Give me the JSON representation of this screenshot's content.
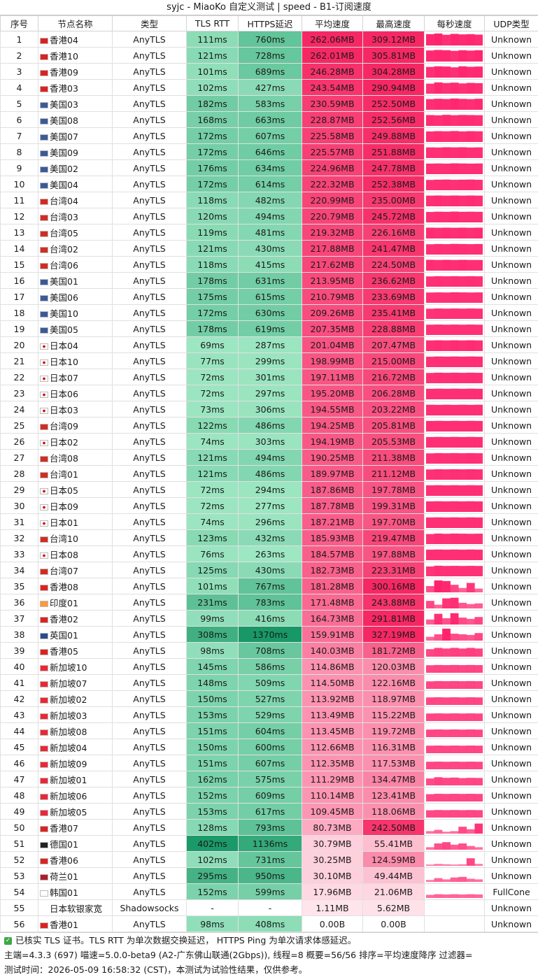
{
  "title": "syjc - MiaoKo 自定义测试 | speed - B1-订阅速度",
  "headers": [
    "序号",
    "节点名称",
    "类型",
    "TLS RTT",
    "HTTPS延迟",
    "平均速度",
    "最高速度",
    "每秒速度",
    "UDP类型"
  ],
  "flags": {
    "hk": "#e02020",
    "us": "#3c5a9a",
    "tw": "#d52b1e",
    "jp": "#ffffff",
    "in": "#ff9933",
    "gb": "#2b4a8a",
    "sg": "#ee2536",
    "de": "#222222",
    "nl": "#ae1c28",
    "kr": "#ffffff",
    "none": "transparent"
  },
  "rows": [
    {
      "n": "1",
      "flag": "hk",
      "name": "香港04",
      "type": "AnyTLS",
      "tls": "111ms",
      "https": "760ms",
      "avg": "262.06MB",
      "max": "309.12MB",
      "udp": "Unknown",
      "speeds": [
        0.9,
        0.95,
        0.85,
        0.92,
        0.88,
        0.9,
        0.86
      ]
    },
    {
      "n": "2",
      "flag": "hk",
      "name": "香港10",
      "type": "AnyTLS",
      "tls": "121ms",
      "https": "728ms",
      "avg": "262.01MB",
      "max": "305.81MB",
      "udp": "Unknown",
      "speeds": [
        0.88,
        0.92,
        0.9,
        0.85,
        0.9,
        0.87,
        0.9
      ]
    },
    {
      "n": "3",
      "flag": "hk",
      "name": "香港09",
      "type": "AnyTLS",
      "tls": "101ms",
      "https": "689ms",
      "avg": "246.28MB",
      "max": "304.28MB",
      "udp": "Unknown",
      "speeds": [
        0.85,
        0.9,
        0.88,
        0.82,
        0.9,
        0.86,
        0.88
      ]
    },
    {
      "n": "4",
      "flag": "hk",
      "name": "香港03",
      "type": "AnyTLS",
      "tls": "102ms",
      "https": "427ms",
      "avg": "243.54MB",
      "max": "290.94MB",
      "udp": "Unknown",
      "speeds": [
        0.8,
        0.9,
        0.85,
        0.88,
        0.82,
        0.86,
        0.84
      ]
    },
    {
      "n": "5",
      "flag": "us",
      "name": "美国03",
      "type": "AnyTLS",
      "tls": "182ms",
      "https": "583ms",
      "avg": "230.59MB",
      "max": "252.50MB",
      "udp": "Unknown",
      "speeds": [
        0.85,
        0.88,
        0.86,
        0.9,
        0.87,
        0.85,
        0.88
      ]
    },
    {
      "n": "6",
      "flag": "us",
      "name": "美国08",
      "type": "AnyTLS",
      "tls": "168ms",
      "https": "663ms",
      "avg": "228.87MB",
      "max": "252.56MB",
      "udp": "Unknown",
      "speeds": [
        0.86,
        0.84,
        0.88,
        0.85,
        0.87,
        0.86,
        0.85
      ]
    },
    {
      "n": "7",
      "flag": "us",
      "name": "美国07",
      "type": "AnyTLS",
      "tls": "172ms",
      "https": "607ms",
      "avg": "225.58MB",
      "max": "249.88MB",
      "udp": "Unknown",
      "speeds": [
        0.84,
        0.86,
        0.85,
        0.87,
        0.84,
        0.86,
        0.85
      ]
    },
    {
      "n": "8",
      "flag": "us",
      "name": "美国09",
      "type": "AnyTLS",
      "tls": "172ms",
      "https": "646ms",
      "avg": "225.57MB",
      "max": "251.88MB",
      "udp": "Unknown",
      "speeds": [
        0.85,
        0.84,
        0.86,
        0.85,
        0.86,
        0.84,
        0.85
      ]
    },
    {
      "n": "9",
      "flag": "us",
      "name": "美国02",
      "type": "AnyTLS",
      "tls": "176ms",
      "https": "634ms",
      "avg": "224.96MB",
      "max": "247.78MB",
      "udp": "Unknown",
      "speeds": [
        0.84,
        0.85,
        0.84,
        0.86,
        0.85,
        0.84,
        0.85
      ]
    },
    {
      "n": "10",
      "flag": "us",
      "name": "美国04",
      "type": "AnyTLS",
      "tls": "172ms",
      "https": "614ms",
      "avg": "222.32MB",
      "max": "252.38MB",
      "udp": "Unknown",
      "speeds": [
        0.82,
        0.84,
        0.85,
        0.83,
        0.84,
        0.85,
        0.83
      ]
    },
    {
      "n": "11",
      "flag": "tw",
      "name": "台湾04",
      "type": "AnyTLS",
      "tls": "118ms",
      "https": "482ms",
      "avg": "220.99MB",
      "max": "235.00MB",
      "udp": "Unknown",
      "speeds": [
        0.85,
        0.86,
        0.85,
        0.86,
        0.85,
        0.86,
        0.85
      ]
    },
    {
      "n": "12",
      "flag": "tw",
      "name": "台湾03",
      "type": "AnyTLS",
      "tls": "120ms",
      "https": "494ms",
      "avg": "220.79MB",
      "max": "245.72MB",
      "udp": "Unknown",
      "speeds": [
        0.83,
        0.85,
        0.84,
        0.86,
        0.84,
        0.85,
        0.84
      ]
    },
    {
      "n": "13",
      "flag": "tw",
      "name": "台湾05",
      "type": "AnyTLS",
      "tls": "119ms",
      "https": "481ms",
      "avg": "219.32MB",
      "max": "226.16MB",
      "udp": "Unknown",
      "speeds": [
        0.86,
        0.85,
        0.86,
        0.85,
        0.86,
        0.85,
        0.86
      ]
    },
    {
      "n": "14",
      "flag": "tw",
      "name": "台湾02",
      "type": "AnyTLS",
      "tls": "121ms",
      "https": "430ms",
      "avg": "217.88MB",
      "max": "241.47MB",
      "udp": "Unknown",
      "speeds": [
        0.82,
        0.84,
        0.83,
        0.85,
        0.84,
        0.83,
        0.84
      ]
    },
    {
      "n": "15",
      "flag": "tw",
      "name": "台湾06",
      "type": "AnyTLS",
      "tls": "118ms",
      "https": "415ms",
      "avg": "217.62MB",
      "max": "224.50MB",
      "udp": "Unknown",
      "speeds": [
        0.86,
        0.85,
        0.86,
        0.85,
        0.86,
        0.85,
        0.85
      ]
    },
    {
      "n": "16",
      "flag": "us",
      "name": "美国01",
      "type": "AnyTLS",
      "tls": "178ms",
      "https": "631ms",
      "avg": "213.95MB",
      "max": "236.62MB",
      "udp": "Unknown",
      "speeds": [
        0.82,
        0.84,
        0.83,
        0.84,
        0.83,
        0.84,
        0.83
      ]
    },
    {
      "n": "17",
      "flag": "us",
      "name": "美国06",
      "type": "AnyTLS",
      "tls": "175ms",
      "https": "615ms",
      "avg": "210.79MB",
      "max": "233.69MB",
      "udp": "Unknown",
      "speeds": [
        0.82,
        0.83,
        0.82,
        0.84,
        0.83,
        0.82,
        0.83
      ]
    },
    {
      "n": "18",
      "flag": "us",
      "name": "美国10",
      "type": "AnyTLS",
      "tls": "172ms",
      "https": "630ms",
      "avg": "209.26MB",
      "max": "235.41MB",
      "udp": "Unknown",
      "speeds": [
        0.81,
        0.83,
        0.82,
        0.83,
        0.82,
        0.83,
        0.82
      ]
    },
    {
      "n": "19",
      "flag": "us",
      "name": "美国05",
      "type": "AnyTLS",
      "tls": "178ms",
      "https": "619ms",
      "avg": "207.35MB",
      "max": "228.88MB",
      "udp": "Unknown",
      "speeds": [
        0.82,
        0.83,
        0.82,
        0.83,
        0.82,
        0.83,
        0.82
      ]
    },
    {
      "n": "20",
      "flag": "jp",
      "name": "日本04",
      "type": "AnyTLS",
      "tls": "69ms",
      "https": "287ms",
      "avg": "201.04MB",
      "max": "207.47MB",
      "udp": "Unknown",
      "speeds": [
        0.85,
        0.86,
        0.85,
        0.86,
        0.85,
        0.86,
        0.85
      ]
    },
    {
      "n": "21",
      "flag": "jp",
      "name": "日本10",
      "type": "AnyTLS",
      "tls": "77ms",
      "https": "299ms",
      "avg": "198.99MB",
      "max": "215.00MB",
      "udp": "Unknown",
      "speeds": [
        0.83,
        0.85,
        0.84,
        0.85,
        0.84,
        0.85,
        0.84
      ]
    },
    {
      "n": "22",
      "flag": "jp",
      "name": "日本07",
      "type": "AnyTLS",
      "tls": "72ms",
      "https": "301ms",
      "avg": "197.11MB",
      "max": "216.72MB",
      "udp": "Unknown",
      "speeds": [
        0.82,
        0.84,
        0.83,
        0.84,
        0.83,
        0.84,
        0.83
      ]
    },
    {
      "n": "23",
      "flag": "jp",
      "name": "日本06",
      "type": "AnyTLS",
      "tls": "72ms",
      "https": "297ms",
      "avg": "195.20MB",
      "max": "206.28MB",
      "udp": "Unknown",
      "speeds": [
        0.84,
        0.85,
        0.84,
        0.85,
        0.84,
        0.85,
        0.84
      ]
    },
    {
      "n": "24",
      "flag": "jp",
      "name": "日本03",
      "type": "AnyTLS",
      "tls": "73ms",
      "https": "306ms",
      "avg": "194.55MB",
      "max": "203.22MB",
      "udp": "Unknown",
      "speeds": [
        0.85,
        0.84,
        0.85,
        0.84,
        0.85,
        0.84,
        0.85
      ]
    },
    {
      "n": "25",
      "flag": "tw",
      "name": "台湾09",
      "type": "AnyTLS",
      "tls": "122ms",
      "https": "486ms",
      "avg": "194.25MB",
      "max": "205.81MB",
      "udp": "Unknown",
      "speeds": [
        0.84,
        0.85,
        0.84,
        0.85,
        0.84,
        0.85,
        0.84
      ]
    },
    {
      "n": "26",
      "flag": "jp",
      "name": "日本02",
      "type": "AnyTLS",
      "tls": "74ms",
      "https": "303ms",
      "avg": "194.19MB",
      "max": "205.53MB",
      "udp": "Unknown",
      "speeds": [
        0.84,
        0.85,
        0.84,
        0.85,
        0.84,
        0.85,
        0.84
      ]
    },
    {
      "n": "27",
      "flag": "tw",
      "name": "台湾08",
      "type": "AnyTLS",
      "tls": "121ms",
      "https": "494ms",
      "avg": "190.25MB",
      "max": "211.38MB",
      "udp": "Unknown",
      "speeds": [
        0.82,
        0.84,
        0.83,
        0.84,
        0.83,
        0.84,
        0.83
      ]
    },
    {
      "n": "28",
      "flag": "tw",
      "name": "台湾01",
      "type": "AnyTLS",
      "tls": "121ms",
      "https": "486ms",
      "avg": "189.97MB",
      "max": "211.12MB",
      "udp": "Unknown",
      "speeds": [
        0.82,
        0.84,
        0.83,
        0.84,
        0.83,
        0.84,
        0.83
      ]
    },
    {
      "n": "29",
      "flag": "jp",
      "name": "日本05",
      "type": "AnyTLS",
      "tls": "72ms",
      "https": "294ms",
      "avg": "187.86MB",
      "max": "197.78MB",
      "udp": "Unknown",
      "speeds": [
        0.84,
        0.85,
        0.84,
        0.85,
        0.84,
        0.85,
        0.84
      ]
    },
    {
      "n": "30",
      "flag": "jp",
      "name": "日本09",
      "type": "AnyTLS",
      "tls": "72ms",
      "https": "277ms",
      "avg": "187.78MB",
      "max": "199.31MB",
      "udp": "Unknown",
      "speeds": [
        0.84,
        0.85,
        0.84,
        0.85,
        0.84,
        0.85,
        0.84
      ]
    },
    {
      "n": "31",
      "flag": "jp",
      "name": "日本01",
      "type": "AnyTLS",
      "tls": "74ms",
      "https": "296ms",
      "avg": "187.21MB",
      "max": "197.70MB",
      "udp": "Unknown",
      "speeds": [
        0.84,
        0.85,
        0.84,
        0.85,
        0.84,
        0.85,
        0.84
      ]
    },
    {
      "n": "32",
      "flag": "tw",
      "name": "台湾10",
      "type": "AnyTLS",
      "tls": "123ms",
      "https": "432ms",
      "avg": "185.93MB",
      "max": "219.47MB",
      "udp": "Unknown",
      "speeds": [
        0.8,
        0.84,
        0.82,
        0.84,
        0.83,
        0.82,
        0.83
      ]
    },
    {
      "n": "33",
      "flag": "jp",
      "name": "日本08",
      "type": "AnyTLS",
      "tls": "76ms",
      "https": "263ms",
      "avg": "184.57MB",
      "max": "197.88MB",
      "udp": "Unknown",
      "speeds": [
        0.84,
        0.85,
        0.84,
        0.85,
        0.84,
        0.85,
        0.84
      ]
    },
    {
      "n": "34",
      "flag": "tw",
      "name": "台湾07",
      "type": "AnyTLS",
      "tls": "125ms",
      "https": "430ms",
      "avg": "182.73MB",
      "max": "223.31MB",
      "udp": "Unknown",
      "speeds": [
        0.78,
        0.84,
        0.82,
        0.83,
        0.82,
        0.83,
        0.82
      ]
    },
    {
      "n": "35",
      "flag": "hk",
      "name": "香港08",
      "type": "AnyTLS",
      "tls": "101ms",
      "https": "767ms",
      "avg": "181.28MB",
      "max": "300.16MB",
      "udp": "Unknown",
      "speeds": [
        0.5,
        0.95,
        0.9,
        0.6,
        0.35,
        0.75,
        0.3
      ]
    },
    {
      "n": "36",
      "flag": "in",
      "name": "印度01",
      "type": "AnyTLS",
      "tls": "231ms",
      "https": "783ms",
      "avg": "171.48MB",
      "max": "243.88MB",
      "udp": "Unknown",
      "speeds": [
        0.6,
        0.3,
        0.8,
        0.85,
        0.45,
        0.35,
        0.4
      ]
    },
    {
      "n": "37",
      "flag": "hk",
      "name": "香港02",
      "type": "AnyTLS",
      "tls": "99ms",
      "https": "416ms",
      "avg": "164.73MB",
      "max": "291.81MB",
      "udp": "Unknown",
      "speeds": [
        0.4,
        0.85,
        0.5,
        0.9,
        0.55,
        0.45,
        0.6
      ]
    },
    {
      "n": "38",
      "flag": "gb",
      "name": "英国01",
      "type": "AnyTLS",
      "tls": "308ms",
      "https": "1370ms",
      "avg": "159.91MB",
      "max": "327.19MB",
      "udp": "Unknown",
      "speeds": [
        0.3,
        0.5,
        0.95,
        0.55,
        0.5,
        0.45,
        0.6
      ]
    },
    {
      "n": "39",
      "flag": "hk",
      "name": "香港05",
      "type": "AnyTLS",
      "tls": "98ms",
      "https": "708ms",
      "avg": "140.03MB",
      "max": "181.72MB",
      "udp": "Unknown",
      "speeds": [
        0.6,
        0.7,
        0.65,
        0.7,
        0.65,
        0.7,
        0.65
      ]
    },
    {
      "n": "40",
      "flag": "sg",
      "name": "新加坡10",
      "type": "AnyTLS",
      "tls": "145ms",
      "https": "586ms",
      "avg": "114.86MB",
      "max": "120.03MB",
      "udp": "Unknown",
      "speeds": [
        0.6,
        0.62,
        0.61,
        0.62,
        0.61,
        0.62,
        0.61
      ]
    },
    {
      "n": "41",
      "flag": "sg",
      "name": "新加坡07",
      "type": "AnyTLS",
      "tls": "148ms",
      "https": "509ms",
      "avg": "114.50MB",
      "max": "122.16MB",
      "udp": "Unknown",
      "speeds": [
        0.6,
        0.62,
        0.61,
        0.62,
        0.61,
        0.62,
        0.61
      ]
    },
    {
      "n": "42",
      "flag": "sg",
      "name": "新加坡02",
      "type": "AnyTLS",
      "tls": "150ms",
      "https": "527ms",
      "avg": "113.92MB",
      "max": "118.97MB",
      "udp": "Unknown",
      "speeds": [
        0.6,
        0.61,
        0.6,
        0.61,
        0.6,
        0.61,
        0.6
      ]
    },
    {
      "n": "43",
      "flag": "sg",
      "name": "新加坡03",
      "type": "AnyTLS",
      "tls": "153ms",
      "https": "529ms",
      "avg": "113.49MB",
      "max": "115.22MB",
      "udp": "Unknown",
      "speeds": [
        0.6,
        0.61,
        0.6,
        0.61,
        0.6,
        0.61,
        0.6
      ]
    },
    {
      "n": "44",
      "flag": "sg",
      "name": "新加坡08",
      "type": "AnyTLS",
      "tls": "151ms",
      "https": "604ms",
      "avg": "113.45MB",
      "max": "119.72MB",
      "udp": "Unknown",
      "speeds": [
        0.6,
        0.61,
        0.6,
        0.61,
        0.6,
        0.61,
        0.6
      ]
    },
    {
      "n": "45",
      "flag": "sg",
      "name": "新加坡04",
      "type": "AnyTLS",
      "tls": "150ms",
      "https": "600ms",
      "avg": "112.66MB",
      "max": "116.31MB",
      "udp": "Unknown",
      "speeds": [
        0.6,
        0.61,
        0.6,
        0.61,
        0.6,
        0.61,
        0.6
      ]
    },
    {
      "n": "46",
      "flag": "sg",
      "name": "新加坡09",
      "type": "AnyTLS",
      "tls": "151ms",
      "https": "607ms",
      "avg": "112.35MB",
      "max": "117.53MB",
      "udp": "Unknown",
      "speeds": [
        0.6,
        0.61,
        0.6,
        0.61,
        0.6,
        0.61,
        0.6
      ]
    },
    {
      "n": "47",
      "flag": "sg",
      "name": "新加坡01",
      "type": "AnyTLS",
      "tls": "162ms",
      "https": "575ms",
      "avg": "111.29MB",
      "max": "134.47MB",
      "udp": "Unknown",
      "speeds": [
        0.55,
        0.65,
        0.6,
        0.62,
        0.58,
        0.6,
        0.59
      ]
    },
    {
      "n": "48",
      "flag": "sg",
      "name": "新加坡06",
      "type": "AnyTLS",
      "tls": "152ms",
      "https": "609ms",
      "avg": "110.14MB",
      "max": "123.41MB",
      "udp": "Unknown",
      "speeds": [
        0.58,
        0.61,
        0.6,
        0.61,
        0.6,
        0.61,
        0.6
      ]
    },
    {
      "n": "49",
      "flag": "sg",
      "name": "新加坡05",
      "type": "AnyTLS",
      "tls": "153ms",
      "https": "617ms",
      "avg": "109.45MB",
      "max": "118.06MB",
      "udp": "Unknown",
      "speeds": [
        0.58,
        0.6,
        0.59,
        0.6,
        0.59,
        0.6,
        0.59
      ]
    },
    {
      "n": "50",
      "flag": "hk",
      "name": "香港07",
      "type": "AnyTLS",
      "tls": "128ms",
      "https": "793ms",
      "avg": "80.73MB",
      "max": "242.50MB",
      "udp": "Unknown",
      "speeds": [
        0.2,
        0.3,
        0.15,
        0.2,
        0.55,
        0.35,
        0.8
      ]
    },
    {
      "n": "51",
      "flag": "de",
      "name": "德国01",
      "type": "AnyTLS",
      "tls": "402ms",
      "https": "1136ms",
      "avg": "30.79MB",
      "max": "55.41MB",
      "udp": "Unknown",
      "speeds": [
        0.2,
        0.5,
        0.6,
        0.4,
        0.5,
        0.3,
        0.2
      ]
    },
    {
      "n": "52",
      "flag": "hk",
      "name": "香港06",
      "type": "AnyTLS",
      "tls": "102ms",
      "https": "731ms",
      "avg": "30.25MB",
      "max": "124.59MB",
      "udp": "Unknown",
      "speeds": [
        0.1,
        0.15,
        0.12,
        0.1,
        0.12,
        0.6,
        0.15
      ]
    },
    {
      "n": "53",
      "flag": "nl",
      "name": "荷兰01",
      "type": "AnyTLS",
      "tls": "295ms",
      "https": "950ms",
      "avg": "30.10MB",
      "max": "49.44MB",
      "udp": "Unknown",
      "speeds": [
        0.15,
        0.3,
        0.2,
        0.35,
        0.4,
        0.25,
        0.2
      ]
    },
    {
      "n": "54",
      "flag": "kr",
      "name": "韩国01",
      "type": "AnyTLS",
      "tls": "152ms",
      "https": "599ms",
      "avg": "17.96MB",
      "max": "21.06MB",
      "udp": "FullCone",
      "speeds": [
        0.25,
        0.3,
        0.28,
        0.3,
        0.28,
        0.3,
        0.28
      ]
    },
    {
      "n": "55",
      "flag": "none",
      "name": "日本软银家宽",
      "type": "Shadowsocks",
      "tls": "-",
      "https": "-",
      "avg": "1.11MB",
      "max": "5.62MB",
      "udp": "Unknown",
      "speeds": [
        0,
        0,
        0,
        0,
        0,
        0,
        0
      ]
    },
    {
      "n": "56",
      "flag": "hk",
      "name": "香港01",
      "type": "AnyTLS",
      "tls": "98ms",
      "https": "408ms",
      "avg": "0.00B",
      "max": "0.00B",
      "udp": "Unknown",
      "speeds": [
        0,
        0,
        0,
        0,
        0,
        0,
        0
      ]
    }
  ],
  "footer": {
    "line1": "已核实 TLS 证书。TLS RTT 为单次数据交换延迟， HTTPS Ping 为单次请求体感延迟。",
    "line2": "主端=4.3.3 (697) 喵速=5.0.0-beta9 (A2-广东佛山联通(2Gbps)), 线程=8 概要=56/56 排序=平均速度降序 过滤器=",
    "line3": "测试时间：2026-05-09 16:58:32 (CST)，本测试为试验性结果，仅供参考。"
  },
  "colors": {
    "spark": "#ff1f6a"
  }
}
